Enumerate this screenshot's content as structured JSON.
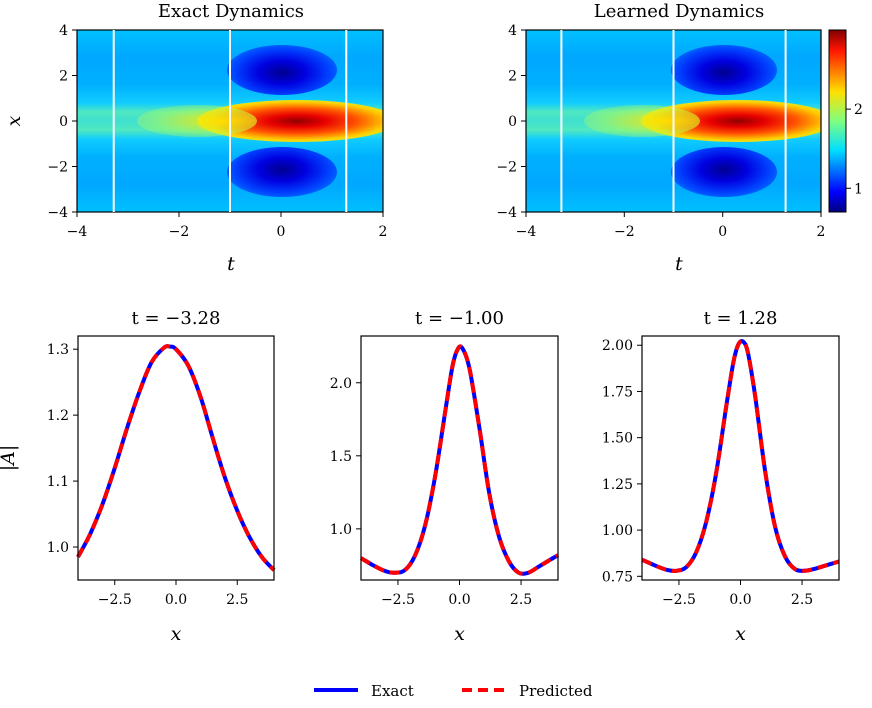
{
  "colors": {
    "exact": "#0000ff",
    "predicted": "#ff0000",
    "slice_line": "#ffffff"
  },
  "heatmaps": [
    {
      "title": "Exact Dynamics",
      "xlabel": "t",
      "ylabel": "x",
      "xlim": [
        -4,
        2
      ],
      "ylim": [
        -4,
        4
      ],
      "xticks": [
        "−4",
        "−2",
        "0",
        "2"
      ],
      "yticks": [
        "−4",
        "−2",
        "0",
        "2",
        "4"
      ]
    },
    {
      "title": "Learned Dynamics",
      "xlabel": "t",
      "ylabel": "",
      "xlim": [
        -4,
        2
      ],
      "ylim": [
        -4,
        4
      ],
      "xticks": [
        "−4",
        "−2",
        "0",
        "2"
      ],
      "yticks": [
        "−4",
        "−2",
        "0",
        "2",
        "4"
      ]
    }
  ],
  "colorbar": {
    "colormap": "jet",
    "range": [
      0.7,
      3.0
    ],
    "ticks": [
      "1",
      "2"
    ],
    "tick_values": [
      1,
      2
    ]
  },
  "slice_lines_t": [
    -3.28,
    -1.0,
    1.28
  ],
  "legend": {
    "exact": "Exact",
    "predicted": "Predicted"
  },
  "chart_data": [
    {
      "type": "heatmap",
      "title": "Exact Dynamics",
      "xlabel": "t",
      "ylabel": "x",
      "xlim": [
        -4,
        2
      ],
      "ylim": [
        -4,
        4
      ],
      "colormap": "jet",
      "vertical_lines_t": [
        -3.28,
        -1.0,
        1.28
      ]
    },
    {
      "type": "heatmap",
      "title": "Learned Dynamics",
      "xlabel": "t",
      "ylabel": "",
      "xlim": [
        -4,
        2
      ],
      "ylim": [
        -4,
        4
      ],
      "colormap": "jet",
      "vertical_lines_t": [
        -3.28,
        -1.0,
        1.28
      ]
    },
    {
      "type": "line",
      "title": "t = −3.28",
      "xlabel": "x",
      "ylabel": "|A|",
      "xlim": [
        -4,
        4
      ],
      "ylim": [
        0.95,
        1.32
      ],
      "xticks": [
        -2.5,
        0.0,
        2.5
      ],
      "xtick_labels": [
        "−2.5",
        "0.0",
        "2.5"
      ],
      "yticks": [
        1.0,
        1.1,
        1.2,
        1.3
      ],
      "ytick_labels": [
        "1.0",
        "1.1",
        "1.2",
        "1.3"
      ],
      "x": [
        -4,
        -3.5,
        -3,
        -2.5,
        -2,
        -1.5,
        -1,
        -0.5,
        -0.25,
        0,
        0.5,
        1,
        1.5,
        2,
        2.5,
        3,
        3.5,
        4
      ],
      "series": [
        {
          "name": "Exact",
          "values": [
            0.985,
            1.02,
            1.065,
            1.12,
            1.18,
            1.235,
            1.28,
            1.302,
            1.304,
            1.3,
            1.275,
            1.228,
            1.165,
            1.105,
            1.055,
            1.015,
            0.985,
            0.965
          ]
        },
        {
          "name": "Predicted",
          "values": [
            0.985,
            1.02,
            1.065,
            1.12,
            1.18,
            1.235,
            1.28,
            1.302,
            1.304,
            1.3,
            1.275,
            1.228,
            1.165,
            1.105,
            1.055,
            1.015,
            0.985,
            0.965
          ]
        }
      ]
    },
    {
      "type": "line",
      "title": "t = −1.00",
      "xlabel": "x",
      "ylabel": "",
      "xlim": [
        -4,
        4
      ],
      "ylim": [
        0.65,
        2.32
      ],
      "xticks": [
        -2.5,
        0.0,
        2.5
      ],
      "xtick_labels": [
        "−2.5",
        "0.0",
        "2.5"
      ],
      "yticks": [
        1.0,
        1.5,
        2.0
      ],
      "ytick_labels": [
        "1.0",
        "1.5",
        "2.0"
      ],
      "x": [
        -4,
        -3.5,
        -3,
        -2.6,
        -2.2,
        -1.8,
        -1.4,
        -1,
        -0.6,
        -0.3,
        -0.1,
        0.1,
        0.4,
        0.8,
        1.2,
        1.6,
        2,
        2.4,
        2.8,
        3.2,
        3.6,
        4
      ],
      "series": [
        {
          "name": "Exact",
          "values": [
            0.8,
            0.75,
            0.71,
            0.7,
            0.72,
            0.82,
            1.02,
            1.35,
            1.78,
            2.1,
            2.22,
            2.24,
            2.1,
            1.7,
            1.25,
            0.95,
            0.78,
            0.7,
            0.7,
            0.74,
            0.78,
            0.82
          ]
        },
        {
          "name": "Predicted",
          "values": [
            0.8,
            0.75,
            0.71,
            0.7,
            0.72,
            0.82,
            1.02,
            1.35,
            1.78,
            2.1,
            2.22,
            2.24,
            2.1,
            1.7,
            1.25,
            0.95,
            0.78,
            0.7,
            0.7,
            0.74,
            0.78,
            0.82
          ]
        }
      ]
    },
    {
      "type": "line",
      "title": "t = 1.28",
      "xlabel": "x",
      "ylabel": "",
      "xlim": [
        -4,
        4
      ],
      "ylim": [
        0.73,
        2.05
      ],
      "xticks": [
        -2.5,
        0.0,
        2.5
      ],
      "xtick_labels": [
        "−2.5",
        "0.0",
        "2.5"
      ],
      "yticks": [
        0.75,
        1.0,
        1.25,
        1.5,
        1.75,
        2.0
      ],
      "ytick_labels": [
        "0.75",
        "1.00",
        "1.25",
        "1.50",
        "1.75",
        "2.00"
      ],
      "x": [
        -4,
        -3.5,
        -3,
        -2.6,
        -2.2,
        -1.8,
        -1.4,
        -1,
        -0.6,
        -0.3,
        -0.1,
        0.1,
        0.3,
        0.6,
        1,
        1.4,
        1.8,
        2.2,
        2.6,
        3,
        3.5,
        4
      ],
      "series": [
        {
          "name": "Exact",
          "values": [
            0.84,
            0.81,
            0.785,
            0.78,
            0.8,
            0.88,
            1.04,
            1.3,
            1.65,
            1.9,
            2.0,
            2.02,
            1.96,
            1.72,
            1.32,
            1.02,
            0.86,
            0.79,
            0.78,
            0.79,
            0.81,
            0.83
          ]
        },
        {
          "name": "Predicted",
          "values": [
            0.84,
            0.81,
            0.785,
            0.78,
            0.8,
            0.88,
            1.04,
            1.3,
            1.65,
            1.9,
            2.0,
            2.02,
            1.96,
            1.72,
            1.32,
            1.02,
            0.86,
            0.79,
            0.78,
            0.79,
            0.81,
            0.83
          ]
        }
      ]
    }
  ]
}
